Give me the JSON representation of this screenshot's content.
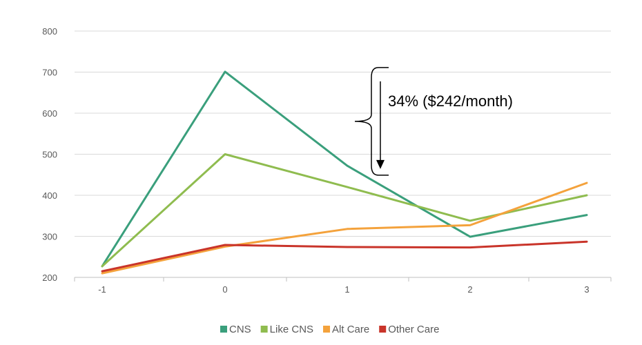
{
  "chart_data": {
    "type": "line",
    "x": [
      -1,
      0,
      1,
      2,
      3
    ],
    "x_tick_labels": [
      "-1",
      "0",
      "1",
      "2",
      "3"
    ],
    "y_ticks": [
      200,
      300,
      400,
      500,
      600,
      700,
      800
    ],
    "ylim": [
      200,
      800
    ],
    "grid": "horizontal",
    "legend_position": "bottom",
    "series": [
      {
        "name": "CNS",
        "color": "#3a9f7c",
        "values": [
          227,
          701,
          472,
          299,
          352
        ]
      },
      {
        "name": "Like CNS",
        "color": "#8fbc4f",
        "values": [
          227,
          500,
          420,
          338,
          400
        ]
      },
      {
        "name": "Alt Care",
        "color": "#f4a23c",
        "values": [
          210,
          275,
          318,
          327,
          430
        ]
      },
      {
        "name": "Other Care",
        "color": "#c9342a",
        "values": [
          215,
          279,
          274,
          273,
          287
        ]
      }
    ],
    "annotation": {
      "text": "34%  ($242/month)",
      "from_value": 701,
      "to_value": 459
    }
  }
}
